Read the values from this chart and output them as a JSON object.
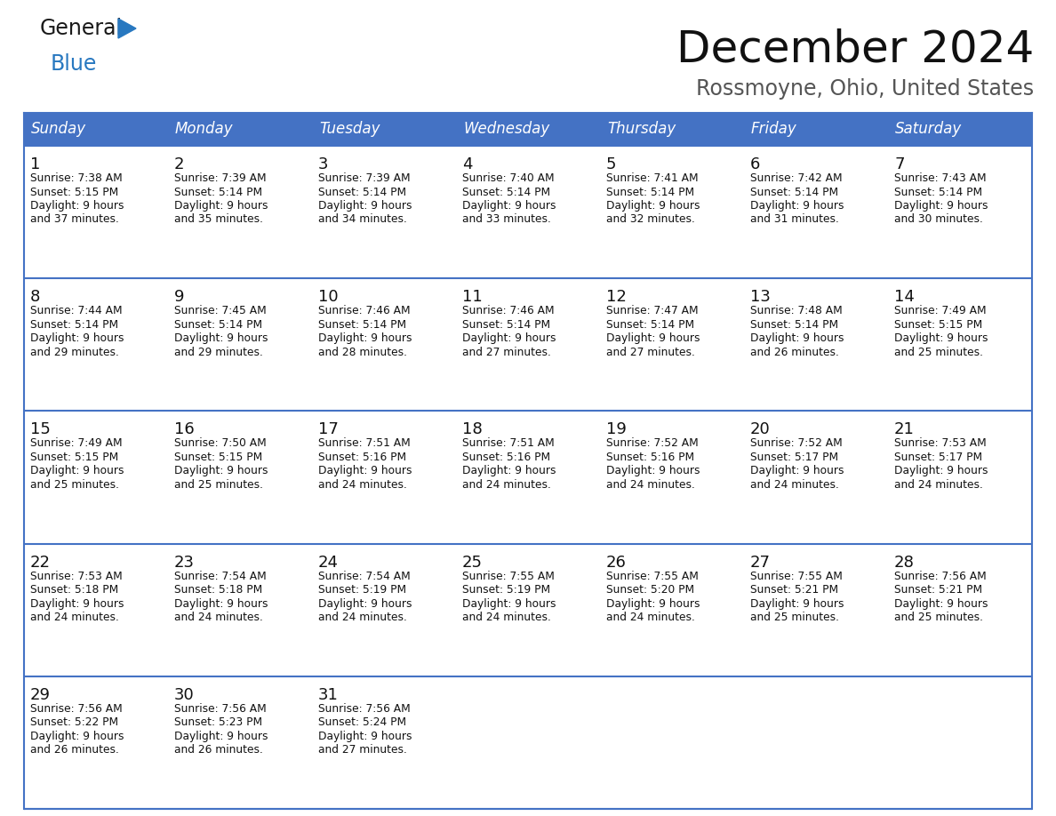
{
  "title": "December 2024",
  "subtitle": "Rossmoyne, Ohio, United States",
  "header_color": "#4472C4",
  "header_text_color": "#FFFFFF",
  "cell_bg_color": "#FFFFFF",
  "border_color": "#4472C4",
  "days_of_week": [
    "Sunday",
    "Monday",
    "Tuesday",
    "Wednesday",
    "Thursday",
    "Friday",
    "Saturday"
  ],
  "calendar_data": [
    [
      {
        "day": 1,
        "sunrise": "7:38 AM",
        "sunset": "5:15 PM",
        "daylight": "9 hours and 37 minutes"
      },
      {
        "day": 2,
        "sunrise": "7:39 AM",
        "sunset": "5:14 PM",
        "daylight": "9 hours and 35 minutes"
      },
      {
        "day": 3,
        "sunrise": "7:39 AM",
        "sunset": "5:14 PM",
        "daylight": "9 hours and 34 minutes"
      },
      {
        "day": 4,
        "sunrise": "7:40 AM",
        "sunset": "5:14 PM",
        "daylight": "9 hours and 33 minutes"
      },
      {
        "day": 5,
        "sunrise": "7:41 AM",
        "sunset": "5:14 PM",
        "daylight": "9 hours and 32 minutes"
      },
      {
        "day": 6,
        "sunrise": "7:42 AM",
        "sunset": "5:14 PM",
        "daylight": "9 hours and 31 minutes"
      },
      {
        "day": 7,
        "sunrise": "7:43 AM",
        "sunset": "5:14 PM",
        "daylight": "9 hours and 30 minutes"
      }
    ],
    [
      {
        "day": 8,
        "sunrise": "7:44 AM",
        "sunset": "5:14 PM",
        "daylight": "9 hours and 29 minutes"
      },
      {
        "day": 9,
        "sunrise": "7:45 AM",
        "sunset": "5:14 PM",
        "daylight": "9 hours and 29 minutes"
      },
      {
        "day": 10,
        "sunrise": "7:46 AM",
        "sunset": "5:14 PM",
        "daylight": "9 hours and 28 minutes"
      },
      {
        "day": 11,
        "sunrise": "7:46 AM",
        "sunset": "5:14 PM",
        "daylight": "9 hours and 27 minutes"
      },
      {
        "day": 12,
        "sunrise": "7:47 AM",
        "sunset": "5:14 PM",
        "daylight": "9 hours and 27 minutes"
      },
      {
        "day": 13,
        "sunrise": "7:48 AM",
        "sunset": "5:14 PM",
        "daylight": "9 hours and 26 minutes"
      },
      {
        "day": 14,
        "sunrise": "7:49 AM",
        "sunset": "5:15 PM",
        "daylight": "9 hours and 25 minutes"
      }
    ],
    [
      {
        "day": 15,
        "sunrise": "7:49 AM",
        "sunset": "5:15 PM",
        "daylight": "9 hours and 25 minutes"
      },
      {
        "day": 16,
        "sunrise": "7:50 AM",
        "sunset": "5:15 PM",
        "daylight": "9 hours and 25 minutes"
      },
      {
        "day": 17,
        "sunrise": "7:51 AM",
        "sunset": "5:16 PM",
        "daylight": "9 hours and 24 minutes"
      },
      {
        "day": 18,
        "sunrise": "7:51 AM",
        "sunset": "5:16 PM",
        "daylight": "9 hours and 24 minutes"
      },
      {
        "day": 19,
        "sunrise": "7:52 AM",
        "sunset": "5:16 PM",
        "daylight": "9 hours and 24 minutes"
      },
      {
        "day": 20,
        "sunrise": "7:52 AM",
        "sunset": "5:17 PM",
        "daylight": "9 hours and 24 minutes"
      },
      {
        "day": 21,
        "sunrise": "7:53 AM",
        "sunset": "5:17 PM",
        "daylight": "9 hours and 24 minutes"
      }
    ],
    [
      {
        "day": 22,
        "sunrise": "7:53 AM",
        "sunset": "5:18 PM",
        "daylight": "9 hours and 24 minutes"
      },
      {
        "day": 23,
        "sunrise": "7:54 AM",
        "sunset": "5:18 PM",
        "daylight": "9 hours and 24 minutes"
      },
      {
        "day": 24,
        "sunrise": "7:54 AM",
        "sunset": "5:19 PM",
        "daylight": "9 hours and 24 minutes"
      },
      {
        "day": 25,
        "sunrise": "7:55 AM",
        "sunset": "5:19 PM",
        "daylight": "9 hours and 24 minutes"
      },
      {
        "day": 26,
        "sunrise": "7:55 AM",
        "sunset": "5:20 PM",
        "daylight": "9 hours and 24 minutes"
      },
      {
        "day": 27,
        "sunrise": "7:55 AM",
        "sunset": "5:21 PM",
        "daylight": "9 hours and 25 minutes"
      },
      {
        "day": 28,
        "sunrise": "7:56 AM",
        "sunset": "5:21 PM",
        "daylight": "9 hours and 25 minutes"
      }
    ],
    [
      {
        "day": 29,
        "sunrise": "7:56 AM",
        "sunset": "5:22 PM",
        "daylight": "9 hours and 26 minutes"
      },
      {
        "day": 30,
        "sunrise": "7:56 AM",
        "sunset": "5:23 PM",
        "daylight": "9 hours and 26 minutes"
      },
      {
        "day": 31,
        "sunrise": "7:56 AM",
        "sunset": "5:24 PM",
        "daylight": "9 hours and 27 minutes"
      },
      null,
      null,
      null,
      null
    ]
  ],
  "logo_text_general": "General",
  "logo_text_blue": "Blue",
  "logo_color_general": "#1a1a1a",
  "logo_color_blue": "#2878C0",
  "logo_triangle_color": "#2878C0",
  "fig_width": 11.88,
  "fig_height": 9.18,
  "dpi": 100
}
